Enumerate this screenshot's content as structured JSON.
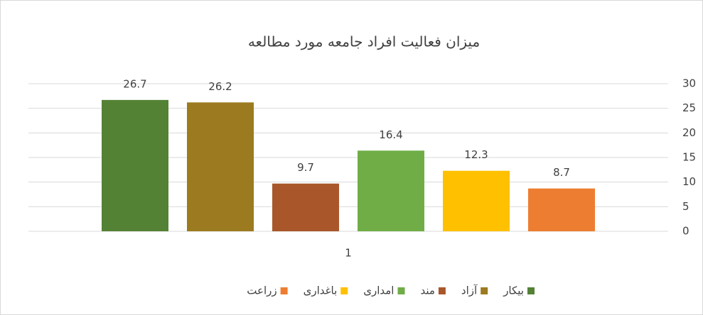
{
  "chart_data": {
    "type": "bar",
    "title": "میزان فعالیت افراد جامعه مورد مطالعه",
    "categories": [
      "1"
    ],
    "series": [
      {
        "name": "بیکار",
        "color": "#548235",
        "values": [
          26.7
        ]
      },
      {
        "name": "آزاد",
        "color": "#9c7a1f",
        "values": [
          26.2
        ]
      },
      {
        "name": "مند",
        "color": "#a9572a",
        "values": [
          9.7
        ]
      },
      {
        "name": "امداری",
        "color": "#70ad47",
        "values": [
          16.4
        ]
      },
      {
        "name": "باغداری",
        "color": "#ffc000",
        "values": [
          12.3
        ]
      },
      {
        "name": "زراعت",
        "color": "#ed7d31",
        "values": [
          8.7
        ]
      }
    ],
    "ylim": [
      0,
      30
    ],
    "yticks": [
      0,
      5,
      10,
      15,
      20,
      25,
      30
    ],
    "grid": true,
    "legend": "bottom"
  }
}
